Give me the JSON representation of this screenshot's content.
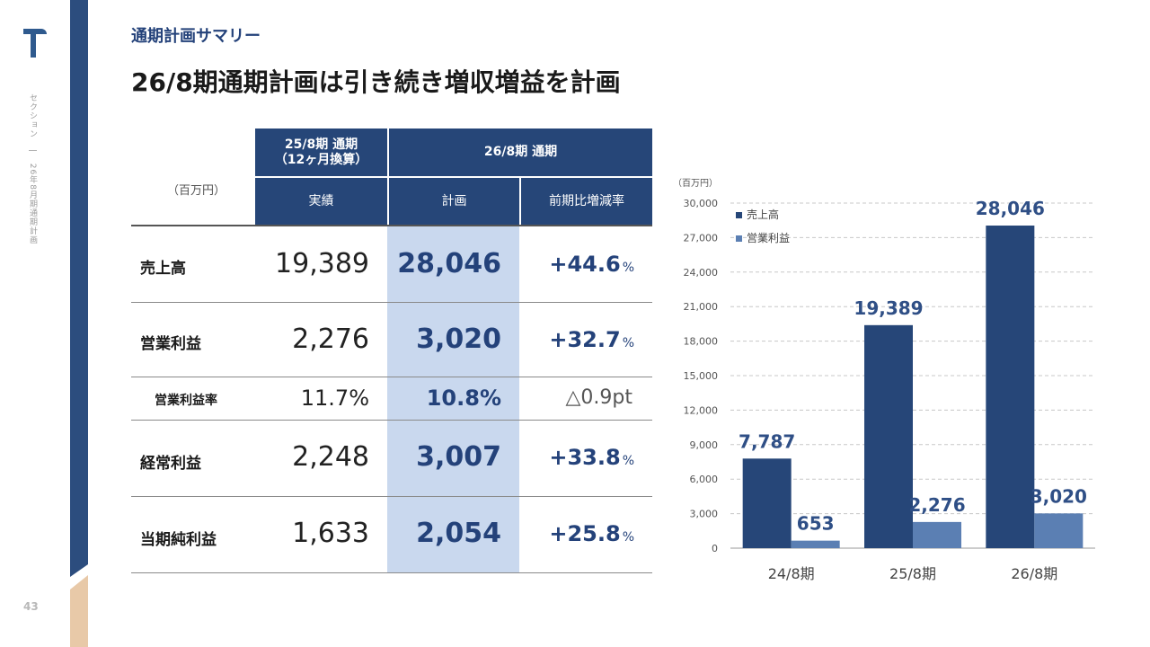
{
  "sidebar": {
    "section_label": "セクション",
    "divider": "|",
    "period_label": "26年8月期通期計画",
    "page_number": "43"
  },
  "header": {
    "subtitle": "通期計画サマリー",
    "title": "26/8期通期計画は引き続き増収増益を計画"
  },
  "table": {
    "unit": "（百万円）",
    "col_25_header_line1": "25/8期 通期",
    "col_25_header_line2": "（12ヶ月換算）",
    "col_26_header": "26/8期 通期",
    "sub_actual": "実績",
    "sub_plan": "計画",
    "sub_change": "前期比増減率",
    "rows": [
      {
        "label": "売上高",
        "fy25": "19,389",
        "fy26": "28,046",
        "change": "+44.6",
        "change_unit": "%"
      },
      {
        "label": "営業利益",
        "fy25": "2,276",
        "fy26": "3,020",
        "change": "+32.7",
        "change_unit": "%"
      },
      {
        "label": "営業利益率",
        "fy25": "11.7%",
        "fy26": "10.8%",
        "change": "△0.9pt",
        "change_unit": ""
      },
      {
        "label": "経常利益",
        "fy25": "2,248",
        "fy26": "3,007",
        "change": "+33.8",
        "change_unit": "%"
      },
      {
        "label": "当期純利益",
        "fy25": "1,633",
        "fy26": "2,054",
        "change": "+25.8",
        "change_unit": "%"
      }
    ]
  },
  "colors": {
    "navy": "#264678",
    "light_blue": "#5b7fb3",
    "highlight": "#c9d8ee",
    "accent_beige": "#e8c9a8"
  },
  "chart_data": {
    "type": "bar",
    "unit_label": "（百万円）",
    "categories": [
      "24/8期",
      "25/8期",
      "26/8期"
    ],
    "series": [
      {
        "name": "売上高",
        "values": [
          7787,
          19389,
          28046
        ],
        "labels": [
          "7,787",
          "19,389",
          "28,046"
        ],
        "color": "#264678"
      },
      {
        "name": "営業利益",
        "values": [
          653,
          2276,
          3020
        ],
        "labels": [
          "653",
          "2,276",
          "3,020"
        ],
        "color": "#5b7fb3"
      }
    ],
    "ylim": [
      0,
      30000
    ],
    "yticks": [
      0,
      3000,
      6000,
      9000,
      12000,
      15000,
      18000,
      21000,
      24000,
      27000,
      30000
    ],
    "ytick_labels": [
      "0",
      "3,000",
      "6,000",
      "9,000",
      "12,000",
      "15,000",
      "18,000",
      "21,000",
      "24,000",
      "27,000",
      "30,000"
    ],
    "grid": true,
    "legend": "top-left"
  }
}
